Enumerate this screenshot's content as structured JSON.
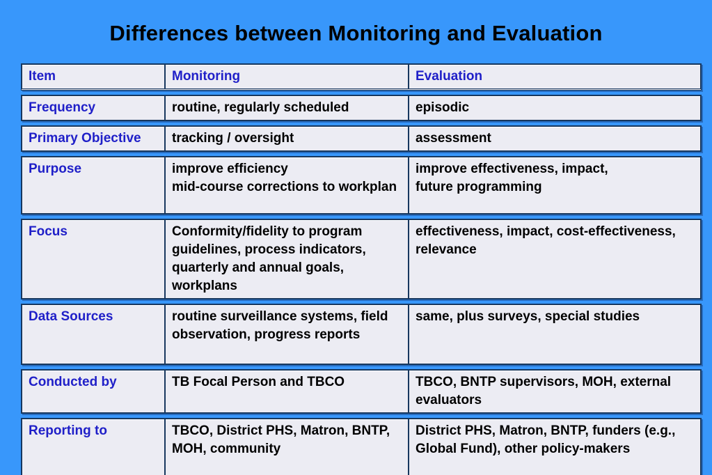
{
  "slide": {
    "title": "Differences between Monitoring and Evaluation"
  },
  "table": {
    "headers": [
      "Item",
      "Monitoring",
      "Evaluation"
    ],
    "rows": [
      {
        "item": "Frequency",
        "monitoring": "routine, regularly scheduled",
        "evaluation": "episodic"
      },
      {
        "item": "Primary Objective",
        "monitoring": "tracking / oversight",
        "evaluation": "assessment"
      },
      {
        "item": "Purpose",
        "monitoring": "improve efficiency\nmid-course corrections to workplan",
        "evaluation": "improve effectiveness, impact,\nfuture programming"
      },
      {
        "item": "Focus",
        "monitoring": "Conformity/fidelity to program guidelines, process indicators, quarterly and annual goals, workplans",
        "evaluation": "effectiveness, impact, cost-effectiveness, relevance"
      },
      {
        "item": "Data Sources",
        "monitoring": "routine surveillance systems, field observation, progress reports",
        "evaluation": "same, plus surveys, special studies"
      },
      {
        "item": "Conducted by",
        "monitoring": "TB Focal Person and TBCO",
        "evaluation": "TBCO, BNTP supervisors, MOH, external evaluators"
      },
      {
        "item": "Reporting to",
        "monitoring": "TBCO, District PHS, Matron, BNTP, MOH, community",
        "evaluation": "District PHS, Matron, BNTP, funders (e.g., Global Fund), other  policy-makers"
      }
    ]
  },
  "colors": {
    "background": "#3897FB",
    "cell_background": "#ECECF3",
    "table_border": "#17375E",
    "header_text": "#1F1FC8",
    "label_text": "#1F1FC8",
    "body_text": "#000000"
  }
}
